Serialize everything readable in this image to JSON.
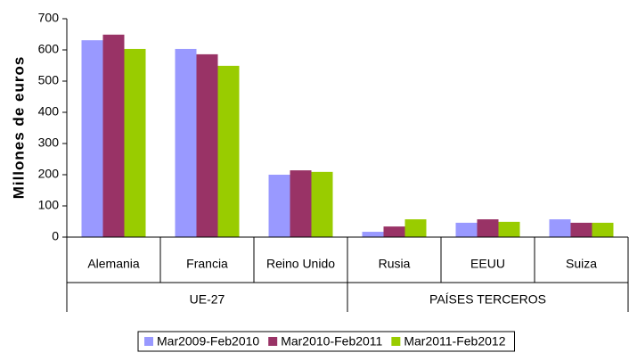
{
  "chart_data": {
    "type": "bar",
    "y_label": "Millones de euros",
    "groups": [
      {
        "name": "UE-27",
        "categories": [
          "Alemania",
          "Francia",
          "Reino Unido"
        ]
      },
      {
        "name": "PAÍSES TERCEROS",
        "categories": [
          "Rusia",
          "EEUU",
          "Suiza"
        ]
      }
    ],
    "series": [
      {
        "name": "Mar2009-Feb2010",
        "color": "#9999ff",
        "values": [
          631,
          603,
          200,
          17,
          46,
          57
        ]
      },
      {
        "name": "Mar2010-Feb2011",
        "color": "#993366",
        "values": [
          649,
          586,
          214,
          34,
          57,
          46
        ]
      },
      {
        "name": "Mar2011-Feb2012",
        "color": "#99cc00",
        "values": [
          603,
          549,
          209,
          57,
          49,
          46
        ]
      }
    ],
    "ylim": [
      0,
      700
    ],
    "yticks": [
      0,
      100,
      200,
      300,
      400,
      500,
      600,
      700
    ],
    "grid": false,
    "legend": "bottom"
  }
}
